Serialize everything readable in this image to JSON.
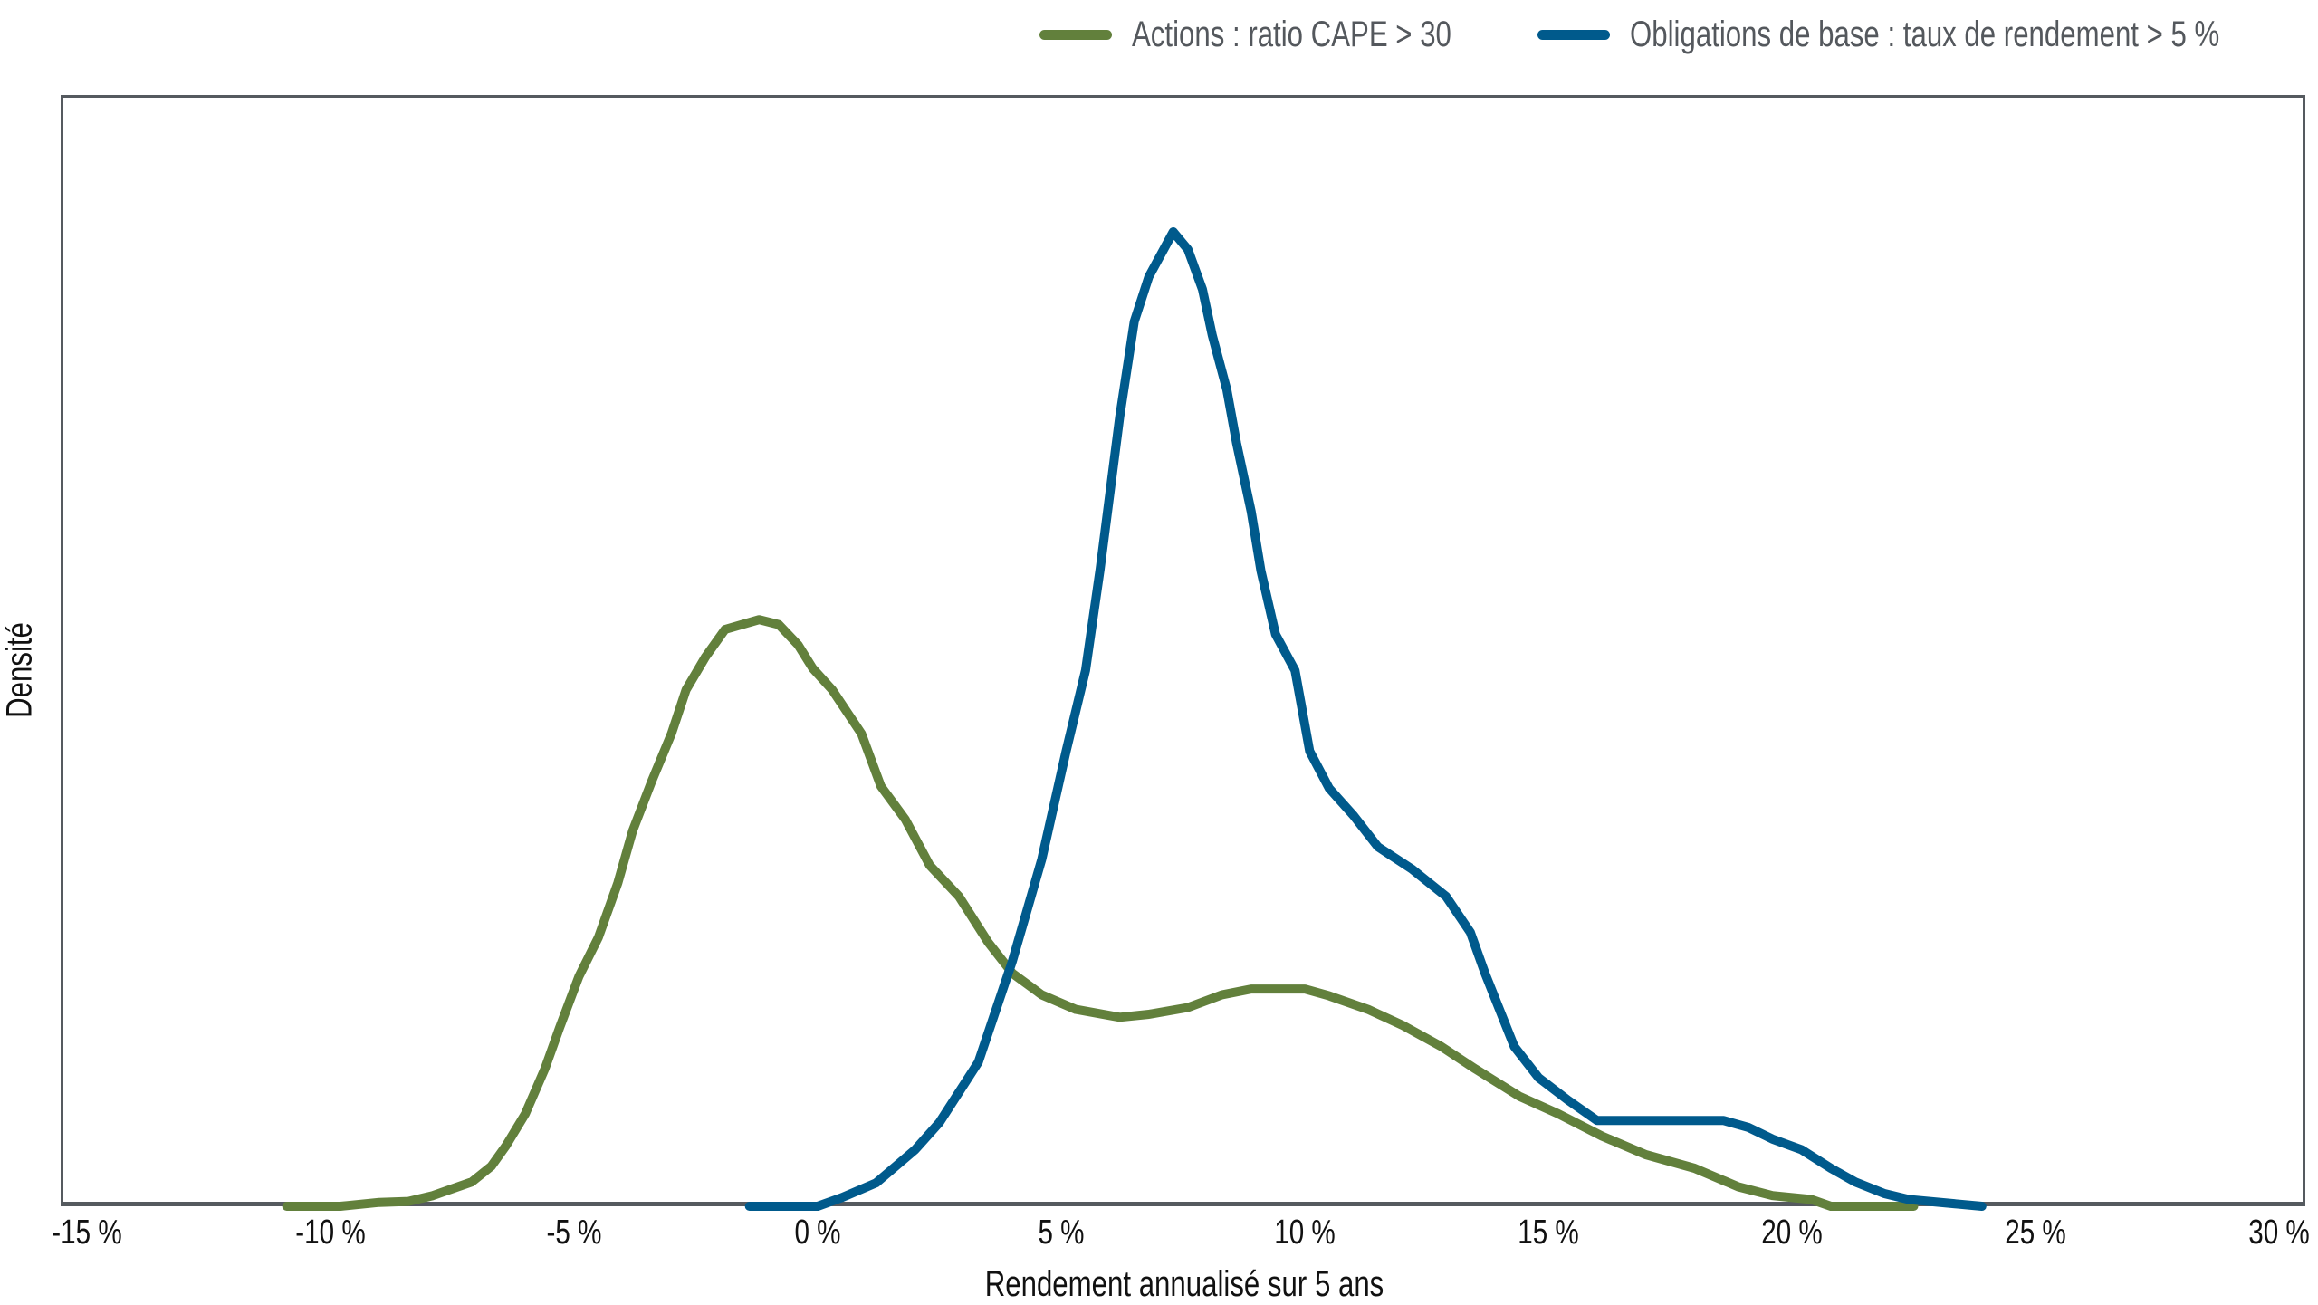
{
  "legend": {
    "items": [
      {
        "label": "Actions : ratio CAPE > 30",
        "color": "#62803c"
      },
      {
        "label": "Obligations de base : taux de rendement > 5 %",
        "color": "#005a8c"
      }
    ]
  },
  "axes": {
    "x_title": "Rendement annualisé sur 5 ans",
    "y_title": "Densité",
    "x_ticks": [
      "-15 %",
      "-10 %",
      "-5 %",
      "0 %",
      "5 %",
      "10 %",
      "15 %",
      "20 %",
      "25 %",
      "30 %"
    ]
  },
  "chart_data": {
    "type": "line",
    "title": "",
    "xlabel": "Rendement annualisé sur 5 ans",
    "ylabel": "Densité",
    "xlim": [
      -15,
      30
    ],
    "x_ticks": [
      -15,
      -10,
      -5,
      0,
      5,
      10,
      15,
      20,
      25,
      30
    ],
    "y_ticks": [],
    "grid": false,
    "legend_position": "top-right",
    "series": [
      {
        "name": "Actions : ratio CAPE > 30",
        "color": "#62803c",
        "points": [
          [
            -10.9,
            0
          ],
          [
            -9.8,
            0
          ],
          [
            -9.0,
            0.004
          ],
          [
            -8.4,
            0.005
          ],
          [
            -7.9,
            0.011
          ],
          [
            -7.1,
            0.025
          ],
          [
            -6.7,
            0.041
          ],
          [
            -6.4,
            0.062
          ],
          [
            -6.0,
            0.095
          ],
          [
            -5.6,
            0.141
          ],
          [
            -5.3,
            0.183
          ],
          [
            -4.9,
            0.236
          ],
          [
            -4.5,
            0.276
          ],
          [
            -4.1,
            0.332
          ],
          [
            -3.8,
            0.385
          ],
          [
            -3.4,
            0.437
          ],
          [
            -3.0,
            0.485
          ],
          [
            -2.7,
            0.53
          ],
          [
            -2.3,
            0.564
          ],
          [
            -1.9,
            0.592
          ],
          [
            -1.2,
            0.602
          ],
          [
            -0.8,
            0.597
          ],
          [
            -0.4,
            0.576
          ],
          [
            -0.1,
            0.552
          ],
          [
            0.3,
            0.53
          ],
          [
            0.9,
            0.485
          ],
          [
            1.3,
            0.431
          ],
          [
            1.8,
            0.397
          ],
          [
            2.3,
            0.35
          ],
          [
            2.9,
            0.318
          ],
          [
            3.5,
            0.271
          ],
          [
            4.0,
            0.239
          ],
          [
            4.6,
            0.217
          ],
          [
            5.3,
            0.202
          ],
          [
            6.2,
            0.194
          ],
          [
            6.8,
            0.197
          ],
          [
            7.6,
            0.204
          ],
          [
            8.3,
            0.217
          ],
          [
            8.9,
            0.223
          ],
          [
            10.0,
            0.223
          ],
          [
            10.5,
            0.216
          ],
          [
            11.3,
            0.202
          ],
          [
            12.0,
            0.186
          ],
          [
            12.8,
            0.164
          ],
          [
            13.5,
            0.141
          ],
          [
            14.4,
            0.113
          ],
          [
            15.2,
            0.095
          ],
          [
            16.1,
            0.072
          ],
          [
            17.0,
            0.053
          ],
          [
            18.0,
            0.039
          ],
          [
            18.9,
            0.02
          ],
          [
            19.6,
            0.011
          ],
          [
            20.4,
            0.007
          ],
          [
            20.8,
            0
          ],
          [
            22.5,
            0
          ]
        ]
      },
      {
        "name": "Obligations de base : taux de rendement > 5 %",
        "color": "#005a8c",
        "points": [
          [
            -1.4,
            0
          ],
          [
            0,
            0
          ],
          [
            0.5,
            0.009
          ],
          [
            1.2,
            0.024
          ],
          [
            2.0,
            0.058
          ],
          [
            2.5,
            0.086
          ],
          [
            3.3,
            0.148
          ],
          [
            4.0,
            0.252
          ],
          [
            4.6,
            0.356
          ],
          [
            5.1,
            0.467
          ],
          [
            5.5,
            0.55
          ],
          [
            5.8,
            0.654
          ],
          [
            6.2,
            0.81
          ],
          [
            6.5,
            0.908
          ],
          [
            6.8,
            0.954
          ],
          [
            7.3,
            1.0
          ],
          [
            7.6,
            0.982
          ],
          [
            7.9,
            0.941
          ],
          [
            8.1,
            0.894
          ],
          [
            8.4,
            0.838
          ],
          [
            8.6,
            0.783
          ],
          [
            8.9,
            0.713
          ],
          [
            9.1,
            0.652
          ],
          [
            9.4,
            0.587
          ],
          [
            9.8,
            0.55
          ],
          [
            10.1,
            0.467
          ],
          [
            10.5,
            0.429
          ],
          [
            11.0,
            0.401
          ],
          [
            11.5,
            0.369
          ],
          [
            12.2,
            0.346
          ],
          [
            12.9,
            0.318
          ],
          [
            13.4,
            0.281
          ],
          [
            13.7,
            0.239
          ],
          [
            14.3,
            0.164
          ],
          [
            14.8,
            0.132
          ],
          [
            15.4,
            0.109
          ],
          [
            16.0,
            0.088
          ],
          [
            18.6,
            0.088
          ],
          [
            19.1,
            0.081
          ],
          [
            19.6,
            0.069
          ],
          [
            20.2,
            0.058
          ],
          [
            20.8,
            0.039
          ],
          [
            21.3,
            0.025
          ],
          [
            21.9,
            0.013
          ],
          [
            22.4,
            0.007
          ],
          [
            23.9,
            0
          ]
        ]
      }
    ]
  }
}
